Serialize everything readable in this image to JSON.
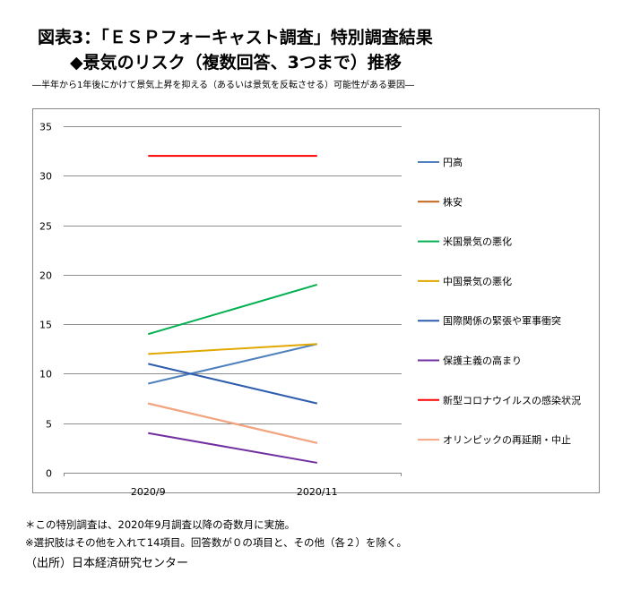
{
  "title": "図表3：「ＥＳＰフォーキャスト調査」特別調査結果",
  "subtitle": "◆景気のリスク（複数回答、3つまで）推移",
  "caption": "―半年から1年後にかけて景気上昇を抑える（あるいは景気を反転させる）可能性がある要因―",
  "notes": [
    "＊この特別調査は、2020年9月調査以降の奇数月に実施。",
    "※選択肢はその他を入れて14項目。回答数が０の項目と、その他（各２）を除く。",
    "（出所）日本経済研究センター"
  ],
  "chart_data": {
    "type": "line",
    "categories": [
      "2020/9",
      "2020/11"
    ],
    "ylim": [
      0,
      35
    ],
    "yticks": [
      "0",
      "5",
      "10",
      "15",
      "20",
      "25",
      "30",
      "35"
    ],
    "legend_position": "right",
    "series": [
      {
        "name": "円高",
        "values": [
          9,
          13
        ],
        "color": "#4f81bd"
      },
      {
        "name": "株安",
        "values": [
          7,
          3
        ],
        "color": "#c0651a"
      },
      {
        "name": "米国景気の悪化",
        "values": [
          14,
          19
        ],
        "color": "#00b050"
      },
      {
        "name": "中国景気の悪化",
        "values": [
          12,
          13
        ],
        "color": "#e0a800"
      },
      {
        "name": "国際関係の緊張や軍事衝突",
        "values": [
          11,
          7
        ],
        "color": "#2f5dae"
      },
      {
        "name": "保護主義の高まり",
        "values": [
          4,
          1
        ],
        "color": "#7030a0"
      },
      {
        "name": "新型コロナウイルスの感染状況",
        "values": [
          32,
          32
        ],
        "color": "#ff0000"
      },
      {
        "name": "オリンピックの再延期・中止",
        "values": [
          7,
          3
        ],
        "color": "#f4a582"
      }
    ]
  }
}
